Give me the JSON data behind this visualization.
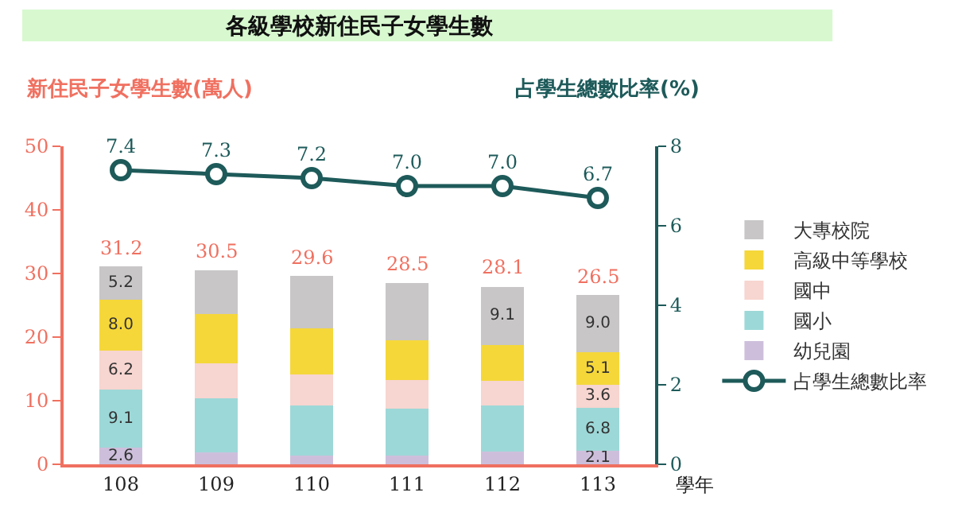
{
  "chart_data": {
    "type": "bar",
    "stacked": true,
    "title": "各級學校新住民子女學生數",
    "ylabel": "新住民子女學生數(萬人)",
    "y2label": "占學生總數比率(%)",
    "xlabel": "學年",
    "categories": [
      "108",
      "109",
      "110",
      "111",
      "112",
      "113"
    ],
    "series": [
      {
        "name": "幼兒園",
        "color": "#cdbfdc",
        "values": [
          2.6,
          1.9,
          1.4,
          1.4,
          2.0,
          2.1
        ],
        "value_labels": [
          "2.6",
          null,
          null,
          null,
          null,
          "2.1"
        ]
      },
      {
        "name": "國小",
        "color": "#9dd8d8",
        "values": [
          9.1,
          8.5,
          7.9,
          7.3,
          7.3,
          6.8
        ],
        "value_labels": [
          "9.1",
          null,
          null,
          null,
          null,
          "6.8"
        ]
      },
      {
        "name": "國中",
        "color": "#f7d5d0",
        "values": [
          6.2,
          5.5,
          4.8,
          4.5,
          3.8,
          3.6
        ],
        "value_labels": [
          "6.2",
          null,
          null,
          null,
          null,
          "3.6"
        ]
      },
      {
        "name": "高級中等學校",
        "color": "#f5d73a",
        "values": [
          8.0,
          7.7,
          7.3,
          6.3,
          5.7,
          5.1
        ],
        "value_labels": [
          "8.0",
          null,
          null,
          null,
          null,
          "5.1"
        ]
      },
      {
        "name": "大專校院",
        "color": "#c8c6c6",
        "values": [
          5.2,
          6.9,
          8.2,
          9.0,
          9.1,
          9.0
        ],
        "value_labels": [
          "5.2",
          null,
          null,
          null,
          "9.1",
          "9.0"
        ]
      },
      {
        "name": "占學生總數比率",
        "type": "line",
        "axis": "y2",
        "color": "#1e5a5a",
        "values": [
          7.4,
          7.3,
          7.2,
          7.0,
          7.0,
          6.7
        ],
        "value_labels": [
          "7.4",
          "7.3",
          "7.2",
          "7.0",
          "7.0",
          "6.7"
        ]
      }
    ],
    "totals": [
      "31.2",
      "30.5",
      "29.6",
      "28.5",
      "28.1",
      "26.5"
    ],
    "ylim": [
      0,
      50
    ],
    "yticks": [
      0,
      10,
      20,
      30,
      40,
      50
    ],
    "y2lim": [
      0,
      8
    ],
    "y2ticks": [
      0,
      2,
      4,
      6,
      8
    ],
    "marker": "circle",
    "line_style": "solid",
    "legend": "right"
  }
}
